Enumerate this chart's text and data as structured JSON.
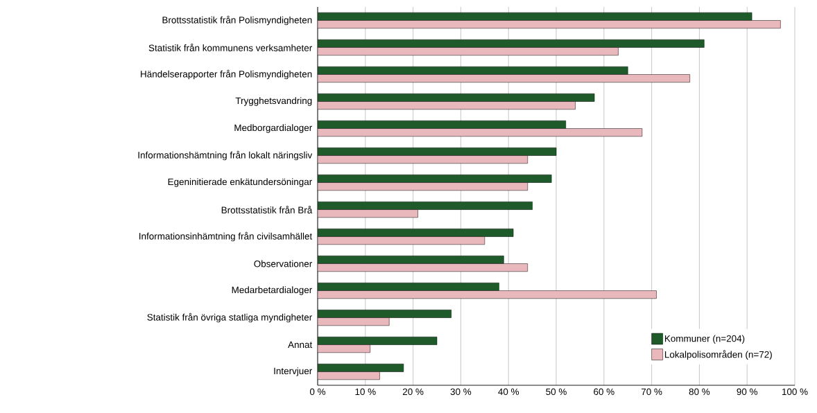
{
  "chart_data": {
    "type": "bar",
    "orientation": "horizontal",
    "categories": [
      "Brottsstatistik från Polismyndigheten",
      "Statistik från kommunens verksamheter",
      "Händelserapporter från Polismyndigheten",
      "Trygghetsvandring",
      "Medborgardialoger",
      "Informationshämtning från lokalt näringsliv",
      "Egeninitierade enkätundersöningar",
      "Brottsstatistik från Brå",
      "Informationsinhämtning från civilsamhället",
      "Observationer",
      "Medarbetardialoger",
      "Statistik från övriga statliga myndigheter",
      "Annat",
      "Intervjuer"
    ],
    "series": [
      {
        "name": "Kommuner (n=204)",
        "color": "#1f5a2a",
        "values": [
          91,
          81,
          65,
          58,
          52,
          50,
          49,
          45,
          41,
          39,
          38,
          28,
          25,
          18
        ]
      },
      {
        "name": "Lokalpolisområden (n=72)",
        "color": "#e8b8bc",
        "values": [
          97,
          63,
          78,
          54,
          68,
          44,
          44,
          21,
          35,
          44,
          71,
          15,
          11,
          13
        ]
      }
    ],
    "xlim": [
      0,
      100
    ],
    "xticks": [
      {
        "value": 0,
        "label": "0 %"
      },
      {
        "value": 10,
        "label": "10 %"
      },
      {
        "value": 20,
        "label": "20 %"
      },
      {
        "value": 30,
        "label": "30 %"
      },
      {
        "value": 40,
        "label": "40 %"
      },
      {
        "value": 50,
        "label": "50 %"
      },
      {
        "value": 60,
        "label": "60 %"
      },
      {
        "value": 70,
        "label": "70 %"
      },
      {
        "value": 80,
        "label": "80 %"
      },
      {
        "value": 90,
        "label": "90 %"
      },
      {
        "value": 100,
        "label": "100 %"
      }
    ],
    "grid": "x",
    "legend": "bottom right"
  }
}
